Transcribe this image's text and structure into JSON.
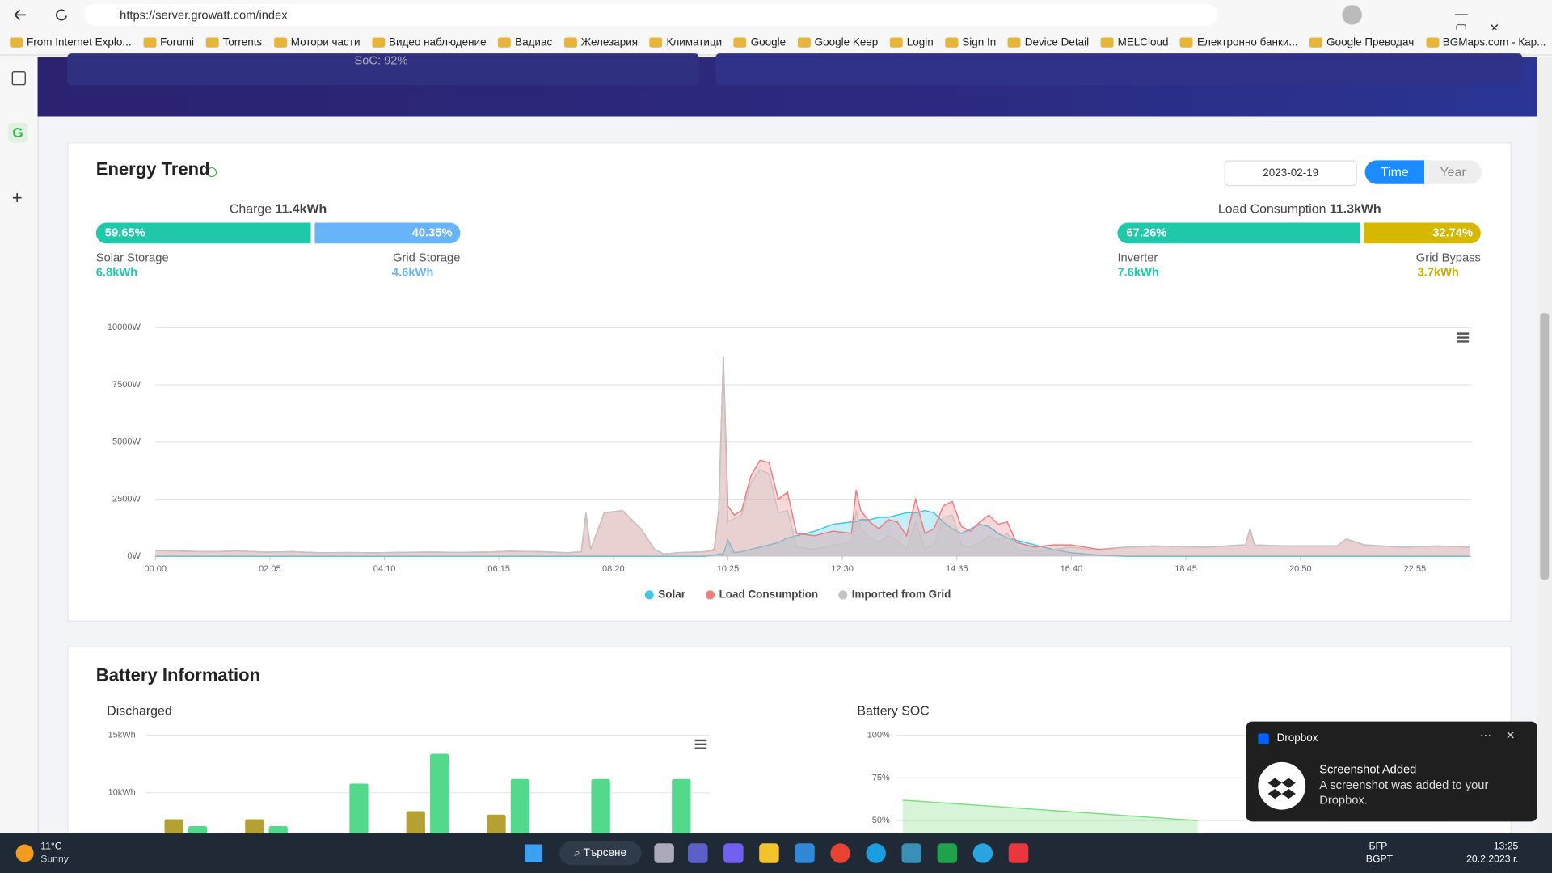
{
  "browser": {
    "url": "https://server.growatt.com/index",
    "bookmarks": [
      "From Internet Explo...",
      "Forumi",
      "Torrents",
      "Мотори части",
      "Видео наблюдение",
      "Вадиас",
      "Железария",
      "Климатици",
      "Google",
      "Google Keep",
      "Login",
      "Sign In",
      "Device Detail",
      "MELCloud",
      "Електронно банки...",
      "Google Преводач",
      "BGMaps.com - Кар..."
    ]
  },
  "banner": {
    "soc": "SoC: 92%"
  },
  "energy": {
    "date": "2023-02-19",
    "modes": [
      "Time",
      "Year"
    ],
    "charge": {
      "label": "Charge",
      "total": "11.4kWh",
      "segments": [
        {
          "percent": "59.65%",
          "name": "Solar Storage",
          "value": "6.8kWh"
        },
        {
          "percent": "40.35%",
          "name": "Grid Storage",
          "value": "4.6kWh"
        }
      ]
    },
    "load": {
      "label": "Load Consumption",
      "total": "11.3kWh",
      "segments": [
        {
          "percent": "67.26%",
          "name": "Inverter",
          "value": "7.6kWh"
        },
        {
          "percent": "32.74%",
          "name": "Grid Bypass",
          "value": "3.7kWh"
        }
      ]
    }
  },
  "battery": {
    "title": "Battery Information"
  },
  "chart_data": [
    {
      "type": "area",
      "title": "Energy Trend",
      "x": [
        0,
        30,
        60,
        90,
        120,
        150,
        180,
        210,
        240,
        270,
        300,
        330,
        360,
        390,
        420,
        450,
        465,
        470,
        475,
        490,
        510,
        530,
        545,
        555,
        570,
        600,
        610,
        615,
        620,
        625,
        632,
        640,
        650,
        660,
        670,
        680,
        690,
        700,
        720,
        740,
        760,
        765,
        770,
        780,
        790,
        800,
        810,
        820,
        830,
        840,
        850,
        860,
        870,
        880,
        890,
        900,
        910,
        920,
        930,
        940,
        960,
        980,
        1000,
        1030,
        1060,
        1090,
        1120,
        1150,
        1180,
        1190,
        1195,
        1200,
        1230,
        1270,
        1290,
        1300,
        1320,
        1360,
        1400,
        1435
      ],
      "series": [
        {
          "name": "Solar",
          "color": "#3fc8e4",
          "values": [
            0,
            0,
            0,
            0,
            0,
            0,
            0,
            0,
            0,
            0,
            0,
            0,
            0,
            0,
            0,
            0,
            0,
            0,
            0,
            0,
            0,
            0,
            0,
            0,
            0,
            0,
            50,
            100,
            100,
            700,
            150,
            200,
            300,
            400,
            500,
            600,
            800,
            900,
            1100,
            1400,
            1500,
            1500,
            1600,
            1600,
            1700,
            1700,
            1800,
            1900,
            1900,
            2000,
            1900,
            1500,
            1200,
            1000,
            1200,
            1400,
            1300,
            1000,
            800,
            700,
            500,
            300,
            150,
            50,
            0,
            0,
            0,
            0,
            0,
            0,
            0,
            0,
            0,
            0,
            0,
            0,
            0,
            0,
            0,
            0
          ]
        },
        {
          "name": "Load Consumption",
          "color": "#f07c80",
          "values": [
            250,
            220,
            200,
            230,
            180,
            200,
            150,
            160,
            150,
            170,
            180,
            170,
            180,
            220,
            200,
            150,
            200,
            1900,
            300,
            1900,
            2000,
            1200,
            300,
            100,
            150,
            200,
            300,
            2000,
            8700,
            2200,
            1800,
            2000,
            3500,
            4200,
            4100,
            2500,
            2800,
            1000,
            900,
            1100,
            1000,
            2900,
            2000,
            1500,
            1200,
            1600,
            1500,
            900,
            2500,
            1000,
            1200,
            2200,
            2400,
            1300,
            1100,
            1500,
            1800,
            1400,
            1500,
            600,
            400,
            500,
            500,
            300,
            400,
            450,
            420,
            400,
            480,
            500,
            1200,
            500,
            450,
            450,
            450,
            750,
            500,
            400,
            450,
            400
          ]
        },
        {
          "name": "Imported from Grid",
          "color": "#c4c4c4",
          "values": [
            250,
            220,
            200,
            230,
            180,
            200,
            150,
            160,
            150,
            170,
            180,
            170,
            180,
            220,
            200,
            150,
            200,
            1900,
            300,
            1900,
            2000,
            1200,
            300,
            100,
            150,
            200,
            250,
            1900,
            8600,
            1500,
            1650,
            1800,
            3200,
            3800,
            3600,
            1900,
            2000,
            400,
            300,
            500,
            600,
            2000,
            1200,
            800,
            600,
            900,
            700,
            300,
            1500,
            300,
            500,
            1700,
            1800,
            500,
            400,
            600,
            900,
            700,
            1000,
            300,
            200,
            300,
            400,
            250,
            400,
            450,
            420,
            400,
            480,
            500,
            1200,
            500,
            450,
            450,
            450,
            750,
            500,
            400,
            450,
            400
          ]
        }
      ],
      "xlim": [
        0,
        1435
      ],
      "xticks": [
        {
          "value": 0,
          "label": "00:00"
        },
        {
          "value": 125,
          "label": "02:05"
        },
        {
          "value": 250,
          "label": "04:10"
        },
        {
          "value": 375,
          "label": "06:15"
        },
        {
          "value": 500,
          "label": "08:20"
        },
        {
          "value": 625,
          "label": "10:25"
        },
        {
          "value": 750,
          "label": "12:30"
        },
        {
          "value": 875,
          "label": "14:35"
        },
        {
          "value": 1000,
          "label": "16:40"
        },
        {
          "value": 1125,
          "label": "18:45"
        },
        {
          "value": 1250,
          "label": "20:50"
        },
        {
          "value": 1375,
          "label": "22:55"
        }
      ],
      "ylim": [
        0,
        10000
      ],
      "yticks": [
        {
          "value": 0,
          "label": "0W"
        },
        {
          "value": 2500,
          "label": "2500W"
        },
        {
          "value": 5000,
          "label": "5000W"
        },
        {
          "value": 7500,
          "label": "7500W"
        },
        {
          "value": 10000,
          "label": "10000W"
        }
      ],
      "grid": true,
      "legend": "bottom"
    },
    {
      "type": "bar",
      "title": "Discharged",
      "categories": [
        null,
        null,
        null,
        null,
        null,
        null,
        null
      ],
      "series": [
        {
          "color": "#b5a033",
          "values": [
            7.7,
            7.7,
            null,
            8.4,
            8.1,
            null,
            null
          ]
        },
        {
          "color": "#52d98c",
          "values": [
            7.1,
            7.1,
            10.8,
            13.4,
            11.2,
            11.2,
            11.2
          ]
        }
      ],
      "ylim": [
        0,
        15
      ],
      "yticks": [
        {
          "value": 15,
          "label": "15kWh"
        },
        {
          "value": 10,
          "label": "10kWh"
        }
      ],
      "grid": true
    },
    {
      "type": "area",
      "title": "Battery SOC",
      "categories": [
        null,
        null,
        null,
        null,
        null,
        null,
        null
      ],
      "series": [
        {
          "color": "#7fdc7f",
          "values": [
            62,
            60,
            58,
            56,
            54,
            52,
            50
          ]
        }
      ],
      "ylim": [
        0,
        100
      ],
      "yticks": [
        {
          "value": 100,
          "label": "100%"
        },
        {
          "value": 75,
          "label": "75%"
        },
        {
          "value": 50,
          "label": "50%"
        }
      ],
      "grid": true
    }
  ],
  "notification": {
    "app": "Dropbox",
    "title": "Screenshot Added",
    "body": "A screenshot was added to your Dropbox."
  },
  "taskbar": {
    "temp": "11°C",
    "weather": "Sunny",
    "search": "Търсене",
    "lang1": "БГР",
    "lang2": "BGPT",
    "time": "13:25",
    "date": "20.2.2023 г."
  }
}
